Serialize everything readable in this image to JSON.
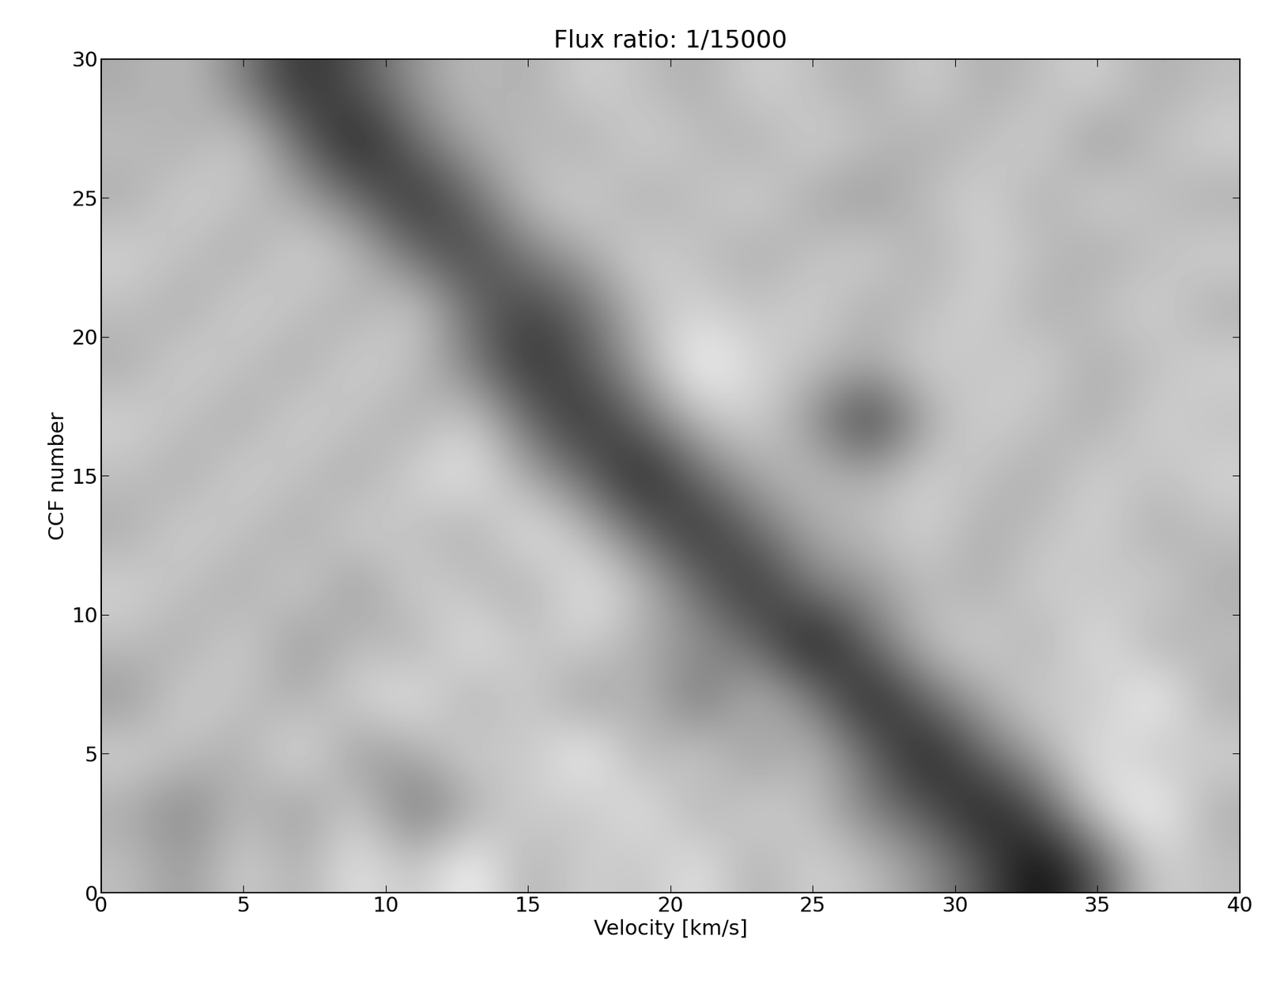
{
  "chart_data": {
    "type": "heatmap",
    "title": "Flux ratio: 1/15000",
    "x_label": "Velocity [km/s]",
    "y_label": "CCF number",
    "xlim": [
      0,
      40
    ],
    "ylim": [
      0,
      30
    ],
    "xticks": [
      0,
      5,
      10,
      15,
      20,
      25,
      30,
      35,
      40
    ],
    "yticks": [
      0,
      5,
      10,
      15,
      20,
      25,
      30
    ],
    "cells": [
      [
        0.55,
        0.45,
        0.6,
        0.5,
        0.65,
        0.55,
        0.7,
        0.5,
        0.6,
        0.55,
        0.65,
        0.5,
        0.6,
        0.55,
        0.45,
        0.3,
        0.1,
        0.3,
        0.6,
        0.55
      ],
      [
        0.5,
        0.4,
        0.55,
        0.45,
        0.6,
        0.35,
        0.5,
        0.6,
        0.55,
        0.65,
        0.5,
        0.6,
        0.55,
        0.4,
        0.3,
        0.15,
        0.3,
        0.6,
        0.7,
        0.5
      ],
      [
        0.6,
        0.55,
        0.5,
        0.65,
        0.45,
        0.5,
        0.6,
        0.55,
        0.7,
        0.5,
        0.6,
        0.45,
        0.55,
        0.35,
        0.15,
        0.35,
        0.5,
        0.65,
        0.55,
        0.6
      ],
      [
        0.45,
        0.6,
        0.55,
        0.5,
        0.6,
        0.65,
        0.5,
        0.6,
        0.45,
        0.55,
        0.35,
        0.55,
        0.4,
        0.15,
        0.35,
        0.5,
        0.6,
        0.55,
        0.7,
        0.5
      ],
      [
        0.55,
        0.5,
        0.6,
        0.45,
        0.55,
        0.5,
        0.65,
        0.55,
        0.6,
        0.5,
        0.45,
        0.35,
        0.12,
        0.35,
        0.55,
        0.6,
        0.5,
        0.65,
        0.5,
        0.55
      ],
      [
        0.6,
        0.55,
        0.5,
        0.6,
        0.45,
        0.6,
        0.55,
        0.5,
        0.65,
        0.55,
        0.35,
        0.2,
        0.4,
        0.45,
        0.55,
        0.5,
        0.6,
        0.55,
        0.6,
        0.5
      ],
      [
        0.5,
        0.6,
        0.55,
        0.5,
        0.6,
        0.55,
        0.5,
        0.65,
        0.55,
        0.35,
        0.2,
        0.35,
        0.5,
        0.55,
        0.6,
        0.5,
        0.55,
        0.6,
        0.5,
        0.55
      ],
      [
        0.55,
        0.5,
        0.6,
        0.55,
        0.5,
        0.6,
        0.65,
        0.5,
        0.35,
        0.15,
        0.35,
        0.5,
        0.55,
        0.5,
        0.6,
        0.55,
        0.5,
        0.6,
        0.55,
        0.6
      ],
      [
        0.6,
        0.55,
        0.5,
        0.6,
        0.55,
        0.5,
        0.6,
        0.35,
        0.2,
        0.35,
        0.55,
        0.6,
        0.45,
        0.2,
        0.5,
        0.6,
        0.55,
        0.5,
        0.6,
        0.55
      ],
      [
        0.5,
        0.6,
        0.55,
        0.5,
        0.6,
        0.55,
        0.4,
        0.2,
        0.3,
        0.5,
        0.7,
        0.6,
        0.55,
        0.5,
        0.6,
        0.55,
        0.6,
        0.5,
        0.55,
        0.6
      ],
      [
        0.55,
        0.5,
        0.6,
        0.55,
        0.5,
        0.6,
        0.35,
        0.25,
        0.35,
        0.55,
        0.6,
        0.55,
        0.6,
        0.5,
        0.55,
        0.6,
        0.5,
        0.55,
        0.6,
        0.5
      ],
      [
        0.6,
        0.55,
        0.5,
        0.6,
        0.55,
        0.35,
        0.25,
        0.4,
        0.5,
        0.6,
        0.55,
        0.5,
        0.55,
        0.6,
        0.5,
        0.6,
        0.55,
        0.5,
        0.55,
        0.6
      ],
      [
        0.5,
        0.6,
        0.55,
        0.5,
        0.35,
        0.2,
        0.35,
        0.55,
        0.6,
        0.5,
        0.55,
        0.6,
        0.5,
        0.45,
        0.55,
        0.6,
        0.5,
        0.6,
        0.55,
        0.5
      ],
      [
        0.55,
        0.5,
        0.6,
        0.35,
        0.15,
        0.35,
        0.5,
        0.55,
        0.5,
        0.6,
        0.55,
        0.5,
        0.6,
        0.55,
        0.5,
        0.55,
        0.6,
        0.45,
        0.55,
        0.6
      ],
      [
        0.5,
        0.55,
        0.4,
        0.2,
        0.3,
        0.45,
        0.55,
        0.5,
        0.6,
        0.55,
        0.5,
        0.6,
        0.55,
        0.5,
        0.6,
        0.5,
        0.55,
        0.6,
        0.5,
        0.55
      ]
    ]
  }
}
